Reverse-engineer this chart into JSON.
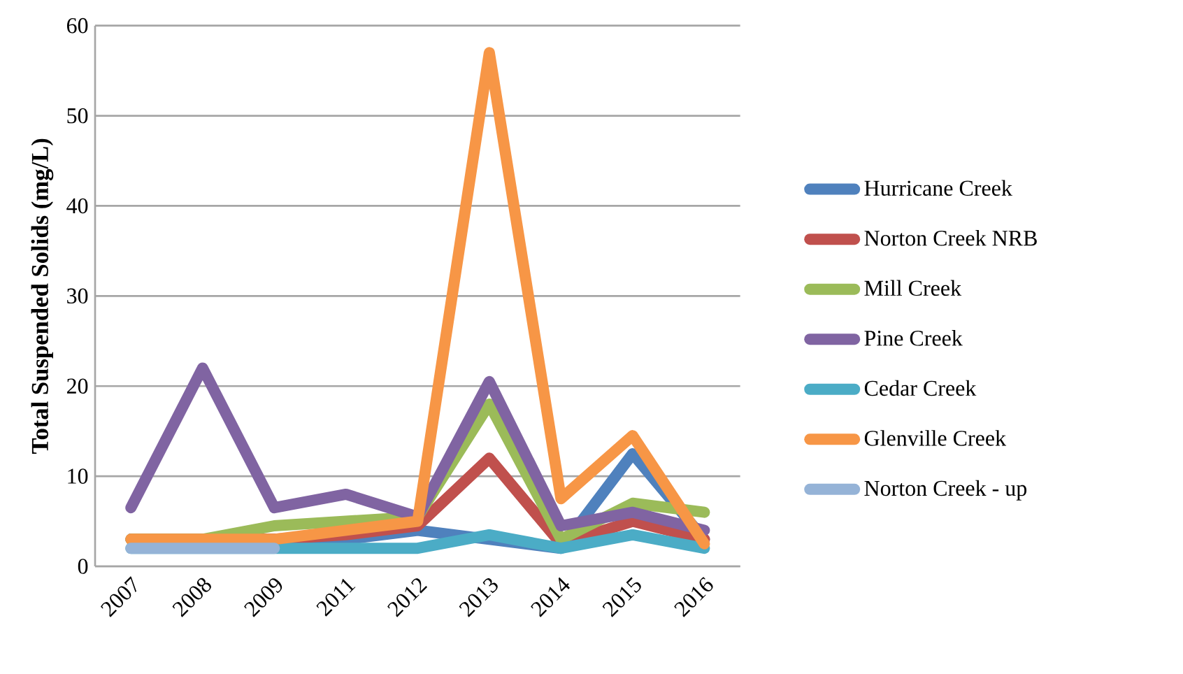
{
  "chart_data": {
    "type": "line",
    "ylabel": "Total Suspended Solids (mg/L)",
    "categories": [
      "2007",
      "2008",
      "2009",
      "2011",
      "2012",
      "2013",
      "2014",
      "2015",
      "2016"
    ],
    "series": [
      {
        "name": "Hurricane Creek",
        "color": "#4f81bd",
        "values": [
          3,
          3,
          3,
          3,
          4,
          3,
          2,
          12.5,
          3
        ]
      },
      {
        "name": "Norton Creek NRB",
        "color": "#c0504d",
        "values": [
          3,
          3,
          3,
          3.5,
          4.5,
          12,
          2.5,
          5,
          3
        ]
      },
      {
        "name": "Mill Creek",
        "color": "#9bbb59",
        "values": [
          3,
          3,
          4.5,
          5,
          5.5,
          18,
          3,
          7,
          6
        ]
      },
      {
        "name": "Pine Creek",
        "color": "#8064a2",
        "values": [
          6.5,
          22,
          6.5,
          8,
          5.5,
          20.5,
          4.5,
          6,
          4
        ]
      },
      {
        "name": "Cedar Creek",
        "color": "#4bacc6",
        "values": [
          2,
          2,
          2,
          2,
          2,
          3.5,
          2,
          3.5,
          2
        ]
      },
      {
        "name": "Glenville Creek",
        "color": "#f79646",
        "values": [
          3,
          3,
          3,
          4,
          5,
          57,
          7.5,
          14.5,
          2.5
        ]
      },
      {
        "name": "Norton Creek - up",
        "color": "#95b3d7",
        "values": [
          2,
          2,
          2,
          null,
          null,
          null,
          null,
          null,
          null
        ]
      }
    ],
    "ylim": [
      0,
      60
    ],
    "yticks": [
      0,
      10,
      20,
      30,
      40,
      50,
      60
    ],
    "grid": "y",
    "legend": "right",
    "marker": "none",
    "line_style": "solid"
  }
}
